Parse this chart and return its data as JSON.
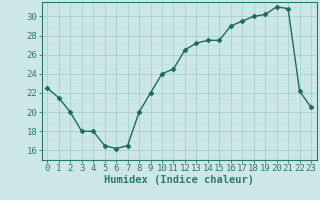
{
  "x": [
    0,
    1,
    2,
    3,
    4,
    5,
    6,
    7,
    8,
    9,
    10,
    11,
    12,
    13,
    14,
    15,
    16,
    17,
    18,
    19,
    20,
    21,
    22,
    23
  ],
  "y": [
    22.5,
    21.5,
    20.0,
    18.0,
    18.0,
    16.5,
    16.2,
    16.5,
    20.0,
    22.0,
    24.0,
    24.5,
    26.5,
    27.2,
    27.5,
    27.5,
    29.0,
    29.5,
    30.0,
    30.2,
    31.0,
    30.8,
    22.2,
    20.5
  ],
  "line_color": "#1a6b5a",
  "marker": "D",
  "marker_size": 2.5,
  "bg_color": "#cce8e6",
  "xlabel": "Humidex (Indice chaleur)",
  "ylim": [
    15.0,
    31.5
  ],
  "xlim": [
    -0.5,
    23.5
  ],
  "yticks": [
    16,
    18,
    20,
    22,
    24,
    26,
    28,
    30
  ],
  "xticks": [
    0,
    1,
    2,
    3,
    4,
    5,
    6,
    7,
    8,
    9,
    10,
    11,
    12,
    13,
    14,
    15,
    16,
    17,
    18,
    19,
    20,
    21,
    22,
    23
  ],
  "xlabel_fontsize": 7.5,
  "tick_fontsize": 6.5,
  "line_width": 1.0,
  "spine_color": "#2a7a6a",
  "grid_major_color": "#aacfcc",
  "grid_minor_color": "#bcdedd"
}
